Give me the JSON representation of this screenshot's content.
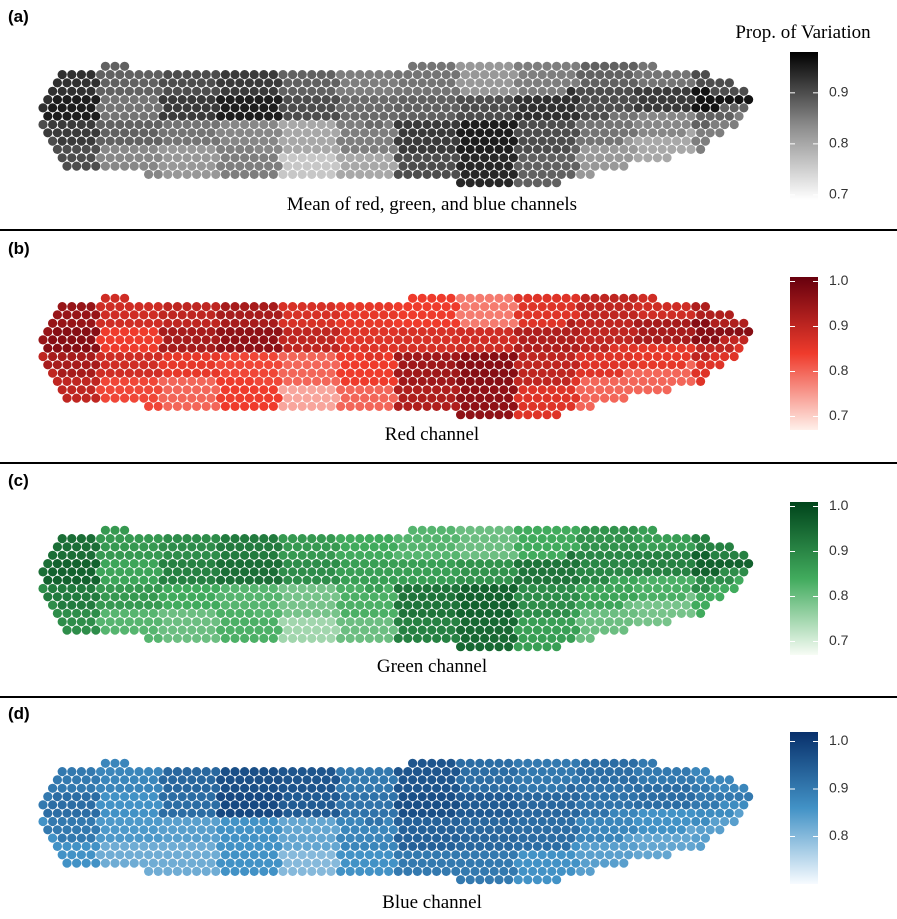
{
  "chart_data": [
    {
      "type": "heatmap",
      "panel_label": "(a)",
      "colorbar_title": "Prop. of Variation",
      "caption": "Mean of red, green, and blue channels",
      "colors": [
        "#ffffff",
        "#8c8c8c",
        "#000000"
      ],
      "clim": [
        0.69,
        0.98
      ],
      "cticks": [
        0.9,
        0.8,
        0.7
      ],
      "values": [
        [
          0.93,
          0.88,
          0.9,
          0.92,
          0.88,
          0.85,
          0.86,
          0.82,
          0.85,
          0.88,
          0.86,
          0.9
        ],
        [
          0.95,
          0.86,
          0.92,
          0.95,
          0.9,
          0.87,
          0.88,
          0.9,
          0.93,
          0.9,
          0.92,
          0.96
        ],
        [
          0.92,
          0.88,
          0.86,
          0.84,
          0.8,
          0.85,
          0.92,
          0.95,
          0.9,
          0.86,
          0.84,
          0.88
        ],
        [
          0.9,
          0.84,
          0.82,
          0.85,
          0.76,
          0.8,
          0.9,
          0.94,
          0.88,
          0.82,
          0.8,
          0.85
        ]
      ]
    },
    {
      "type": "heatmap",
      "panel_label": "(b)",
      "caption": "Red channel",
      "colors": [
        "#fff0ea",
        "#ef3b2c",
        "#67000d"
      ],
      "clim": [
        0.67,
        1.01
      ],
      "cticks": [
        {
          "value": 1,
          "label": "1.0"
        },
        0.9,
        0.8,
        0.7
      ],
      "values": [
        [
          0.95,
          0.88,
          0.9,
          0.93,
          0.87,
          0.85,
          0.84,
          0.78,
          0.86,
          0.9,
          0.88,
          0.92
        ],
        [
          0.97,
          0.84,
          0.93,
          0.96,
          0.9,
          0.86,
          0.87,
          0.88,
          0.92,
          0.9,
          0.93,
          0.97
        ],
        [
          0.93,
          0.88,
          0.85,
          0.83,
          0.8,
          0.84,
          0.94,
          0.97,
          0.9,
          0.86,
          0.85,
          0.9
        ],
        [
          0.9,
          0.83,
          0.8,
          0.84,
          0.74,
          0.8,
          0.92,
          0.96,
          0.86,
          0.8,
          0.8,
          0.86
        ]
      ]
    },
    {
      "type": "heatmap",
      "panel_label": "(c)",
      "caption": "Green channel",
      "colors": [
        "#f7fcf5",
        "#41ab5d",
        "#00441b"
      ],
      "clim": [
        0.67,
        1.01
      ],
      "cticks": [
        {
          "value": 1,
          "label": "1.0"
        },
        0.9,
        0.8,
        0.7
      ],
      "values": [
        [
          0.94,
          0.87,
          0.89,
          0.92,
          0.87,
          0.84,
          0.82,
          0.8,
          0.84,
          0.88,
          0.86,
          0.91
        ],
        [
          0.96,
          0.85,
          0.91,
          0.94,
          0.89,
          0.86,
          0.86,
          0.88,
          0.93,
          0.9,
          0.91,
          0.96
        ],
        [
          0.92,
          0.87,
          0.84,
          0.82,
          0.79,
          0.83,
          0.93,
          0.96,
          0.89,
          0.85,
          0.83,
          0.89
        ],
        [
          0.89,
          0.82,
          0.8,
          0.83,
          0.75,
          0.8,
          0.91,
          0.95,
          0.86,
          0.8,
          0.79,
          0.84
        ]
      ]
    },
    {
      "type": "heatmap",
      "panel_label": "(d)",
      "caption": "Blue channel",
      "colors": [
        "#f7fbff",
        "#4292c6",
        "#08306b"
      ],
      "clim": [
        0.7,
        1.02
      ],
      "cticks": [
        {
          "value": 1,
          "label": "1.0"
        },
        0.9,
        0.8
      ],
      "values": [
        [
          0.9,
          0.88,
          0.93,
          0.97,
          0.96,
          0.9,
          0.96,
          0.92,
          0.9,
          0.92,
          0.9,
          0.88
        ],
        [
          0.92,
          0.86,
          0.92,
          0.98,
          0.95,
          0.91,
          0.97,
          0.95,
          0.93,
          0.91,
          0.92,
          0.9
        ],
        [
          0.9,
          0.85,
          0.84,
          0.86,
          0.83,
          0.88,
          0.94,
          0.93,
          0.92,
          0.88,
          0.86,
          0.87
        ],
        [
          0.86,
          0.82,
          0.82,
          0.86,
          0.8,
          0.86,
          0.9,
          0.9,
          0.86,
          0.84,
          0.83,
          0.84
        ]
      ]
    }
  ]
}
